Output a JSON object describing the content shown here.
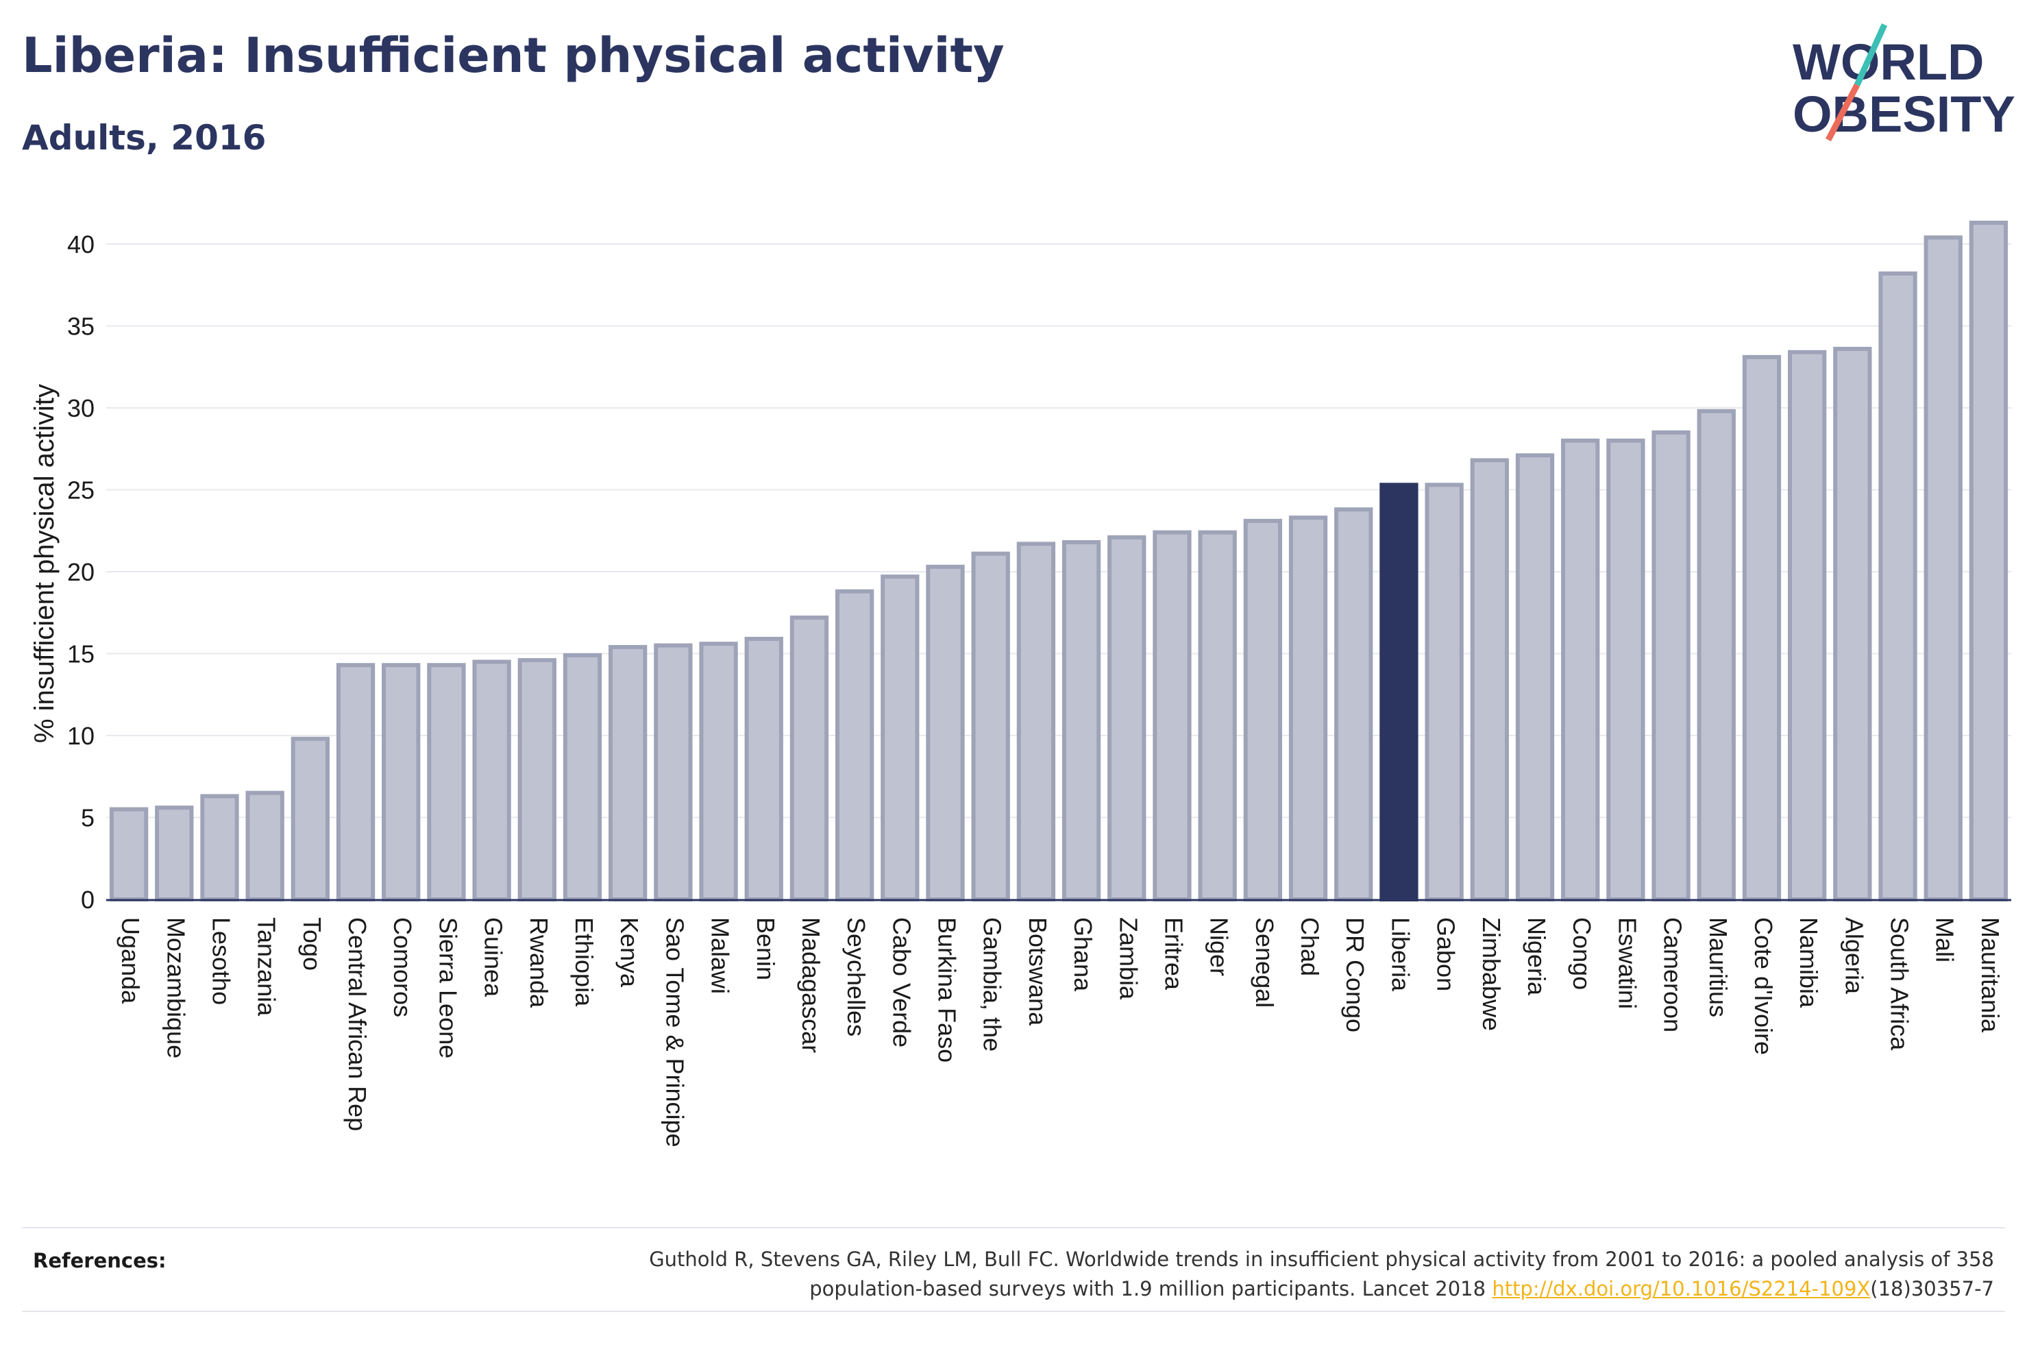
{
  "title": "Liberia: Insufficient physical activity",
  "subtitle": "Adults, 2016",
  "logo": {
    "line1": "WORLD",
    "line2": "OBESITY",
    "slash_colors": [
      "#3cbfb4",
      "#ec6b5a"
    ]
  },
  "colors": {
    "bar": "#bfc3d1",
    "bar_edge": "#9ea3b8",
    "highlight": "#2b3560",
    "grid": "#e8e9ee",
    "text": "#2b3560"
  },
  "chart_data": {
    "type": "bar",
    "ylabel": "% insufficient physical activity",
    "ylim": [
      0,
      43
    ],
    "yticks": [
      0,
      5,
      10,
      15,
      20,
      25,
      30,
      35,
      40
    ],
    "grid": true,
    "highlight": "Liberia",
    "categories": [
      "Uganda",
      "Mozambique",
      "Lesotho",
      "Tanzania",
      "Togo",
      "Central African Rep",
      "Comoros",
      "Sierra Leone",
      "Guinea",
      "Rwanda",
      "Ethiopia",
      "Kenya",
      "Sao Tome & Principe",
      "Malawi",
      "Benin",
      "Madagascar",
      "Seychelles",
      "Cabo Verde",
      "Burkina Faso",
      "Gambia, the",
      "Botswana",
      "Ghana",
      "Zambia",
      "Eritrea",
      "Niger",
      "Senegal",
      "Chad",
      "DR Congo",
      "Liberia",
      "Gabon",
      "Zimbabwe",
      "Nigeria",
      "Congo",
      "Eswatini",
      "Cameroon",
      "Mauritius",
      "Cote d'Ivoire",
      "Namibia",
      "Algeria",
      "South Africa",
      "Mali",
      "Mauritania"
    ],
    "values": [
      5.5,
      5.6,
      6.3,
      6.5,
      9.8,
      14.3,
      14.3,
      14.3,
      14.5,
      14.6,
      14.9,
      15.4,
      15.5,
      15.6,
      15.9,
      17.2,
      18.8,
      19.7,
      20.3,
      21.1,
      21.7,
      21.8,
      22.1,
      22.4,
      22.4,
      23.1,
      23.3,
      23.8,
      25.3,
      25.3,
      26.8,
      27.1,
      28.0,
      28.0,
      28.5,
      29.8,
      33.1,
      33.4,
      33.6,
      38.2,
      40.4,
      41.3
    ]
  },
  "references": {
    "label": "References:",
    "line1": "Guthold R, Stevens GA, Riley LM, Bull FC. Worldwide trends in insufficient physical activity from 2001 to 2016: a pooled analysis of 358",
    "line2_prefix": "population-based surveys with 1.9 million participants. Lancet 2018 ",
    "link": "http://dx.doi.org/10.1016/S2214-109X",
    "line2_suffix": "(18)30357-7"
  }
}
